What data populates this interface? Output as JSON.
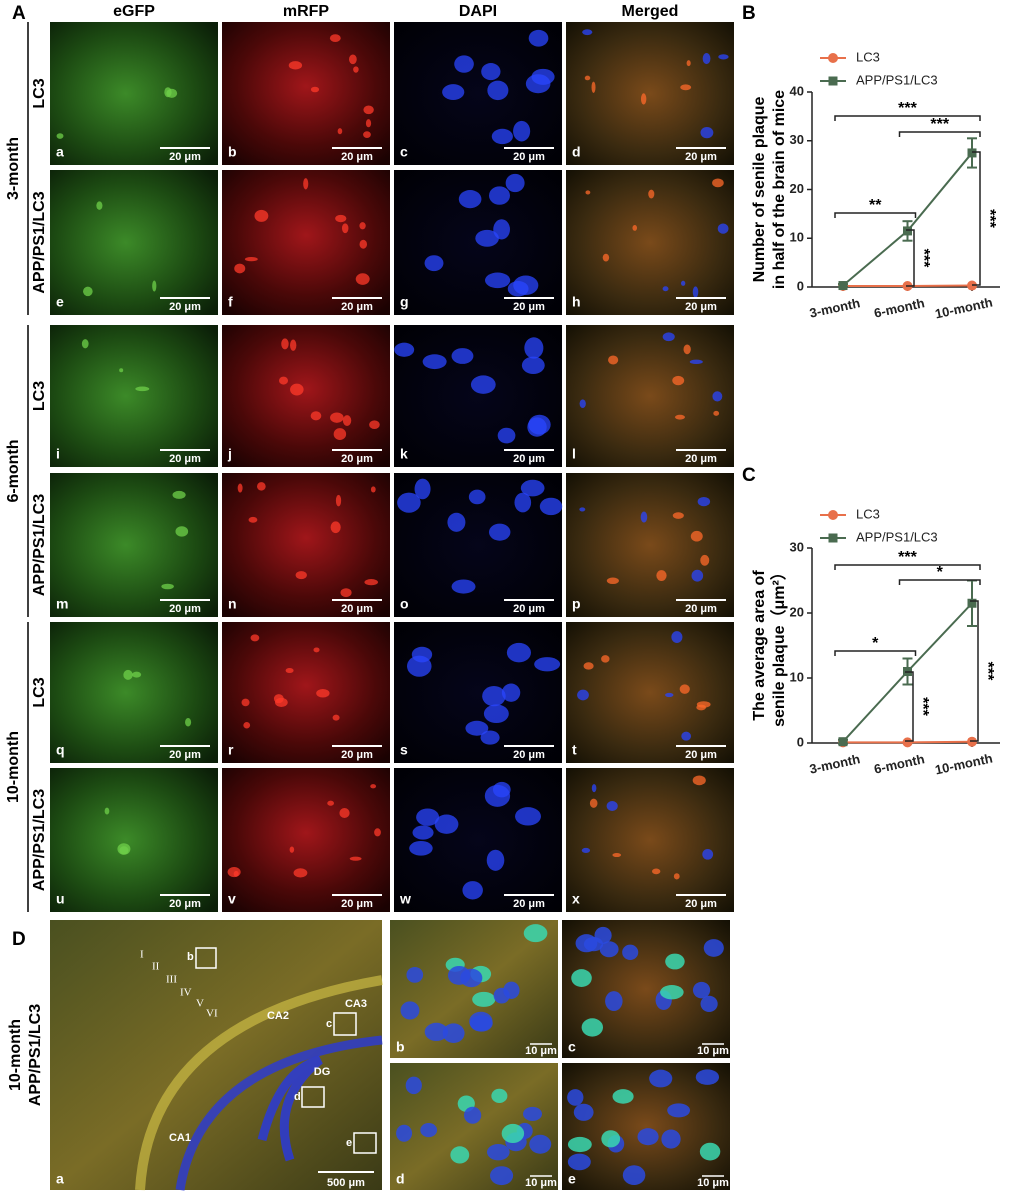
{
  "panel_labels": [
    "A",
    "B",
    "C",
    "D"
  ],
  "column_headers": [
    "eGFP",
    "mRFP",
    "DAPI",
    "Merged"
  ],
  "time_labels": [
    "3-month",
    "6-month",
    "10-month"
  ],
  "row_labels": [
    "LC3",
    "APP/PS1/LC3",
    "LC3",
    "APP/PS1/LC3",
    "LC3",
    "APP/PS1/LC3"
  ],
  "image_letters": [
    "a",
    "b",
    "c",
    "d",
    "e",
    "f",
    "g",
    "h",
    "i",
    "j",
    "k",
    "l",
    "m",
    "n",
    "o",
    "p",
    "q",
    "r",
    "s",
    "t",
    "u",
    "v",
    "w",
    "x"
  ],
  "scale_bar_label": "20 μm",
  "panel_d": {
    "side_label": [
      "10-month",
      "APP/PS1/LC3"
    ],
    "layers": [
      "I",
      "II",
      "III",
      "IV",
      "V",
      "VI"
    ],
    "regions": [
      "CA1",
      "CA2",
      "CA3",
      "DG"
    ],
    "box_letters": [
      "b",
      "c",
      "d",
      "e"
    ],
    "image_letters": [
      "a",
      "b",
      "c",
      "d",
      "e"
    ],
    "scale_bars": [
      "500 μm",
      "10 μm"
    ]
  },
  "chart_data": [
    {
      "type": "line",
      "ylabel": [
        "Number of senile plaque",
        "in half of the brain of mice"
      ],
      "categories": [
        "3-month",
        "6-month",
        "10-month"
      ],
      "series": [
        {
          "name": "LC3",
          "color": "#e8704a",
          "marker": "circle",
          "values": [
            0.2,
            0.2,
            0.3
          ]
        },
        {
          "name": "APP/PS1/LC3",
          "color": "#4a6b50",
          "marker": "square",
          "values": [
            0.3,
            11.5,
            27.5
          ],
          "errors": [
            0.3,
            2,
            3
          ]
        }
      ],
      "ylim": [
        0,
        40
      ],
      "yticks": [
        0,
        10,
        20,
        30,
        40
      ],
      "annotations": [
        "***",
        "***",
        "**",
        "***",
        "***"
      ]
    },
    {
      "type": "line",
      "ylabel": [
        "The average area of",
        "senile plaque（μm²）"
      ],
      "categories": [
        "3-month",
        "6-month",
        "10-month"
      ],
      "series": [
        {
          "name": "LC3",
          "color": "#e8704a",
          "marker": "circle",
          "values": [
            0.1,
            0.1,
            0.2
          ]
        },
        {
          "name": "APP/PS1/LC3",
          "color": "#4a6b50",
          "marker": "square",
          "values": [
            0.2,
            11,
            21.5
          ],
          "errors": [
            0.3,
            2,
            3.5
          ]
        }
      ],
      "ylim": [
        0,
        30
      ],
      "yticks": [
        0,
        10,
        20,
        30
      ],
      "annotations": [
        "***",
        "*",
        "*",
        "***",
        "***"
      ]
    }
  ]
}
